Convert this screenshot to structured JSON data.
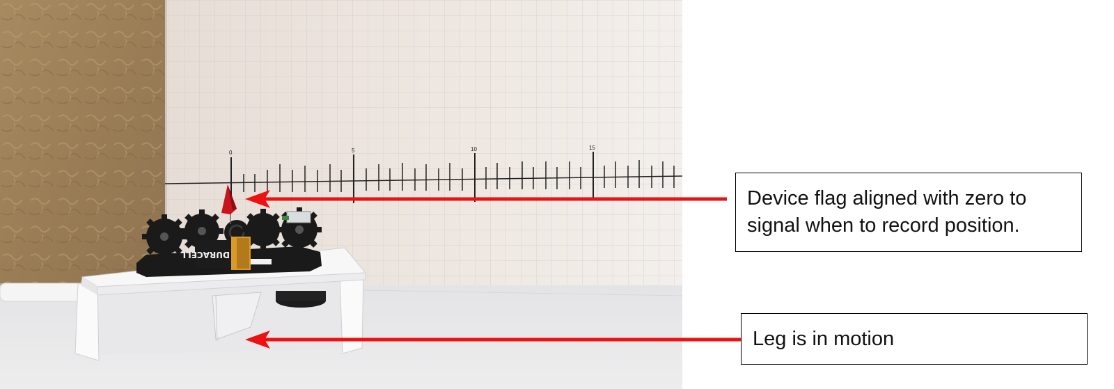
{
  "photo": {
    "scale_labels": [
      "0",
      "5",
      "10",
      "15"
    ],
    "battery_label": "DURACELL"
  },
  "callouts": [
    {
      "text": "Device flag aligned with zero to signal when to record position."
    },
    {
      "text": "Leg is in motion"
    }
  ],
  "colors": {
    "arrow": "#ee1111",
    "wall": "#a88a5e",
    "backdrop": "#ece6e0",
    "table": "#e9e9ea",
    "flag": "#c8141c",
    "gear": "#1a1a1a",
    "battery_gold": "#d99a2a"
  }
}
